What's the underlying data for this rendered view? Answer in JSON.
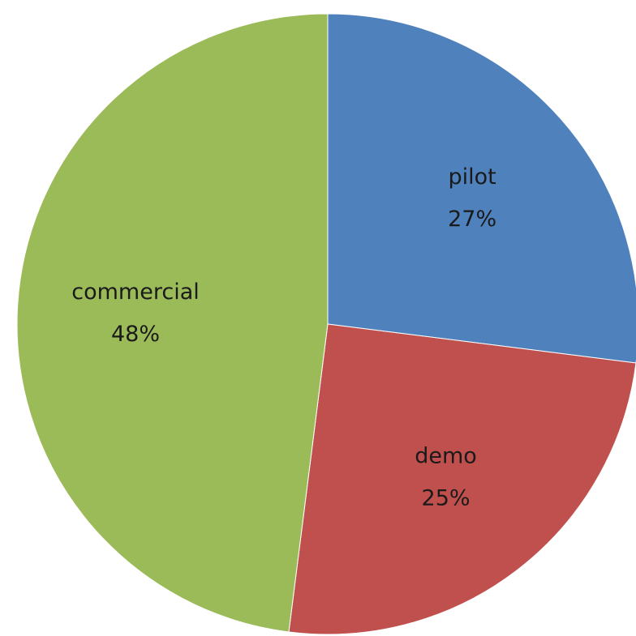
{
  "chart_data": {
    "type": "pie",
    "title": "",
    "start_angle_deg": 0,
    "direction": "clockwise",
    "legend": "none",
    "slices": [
      {
        "label": "pilot",
        "value": 27,
        "percent_label": "27%",
        "color": "#4F81BD"
      },
      {
        "label": "demo",
        "value": 25,
        "percent_label": "25%",
        "color": "#C0504D"
      },
      {
        "label": "commercial",
        "value": 48,
        "percent_label": "48%",
        "color": "#9BBB59"
      }
    ]
  }
}
